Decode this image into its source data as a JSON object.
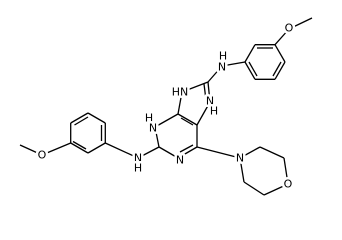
{
  "atoms": [
    "O",
    "H",
    "N",
    "HN",
    "N",
    "H",
    "H",
    "N",
    "N",
    "H",
    "N",
    "N",
    "O",
    "O"
  ]
}
